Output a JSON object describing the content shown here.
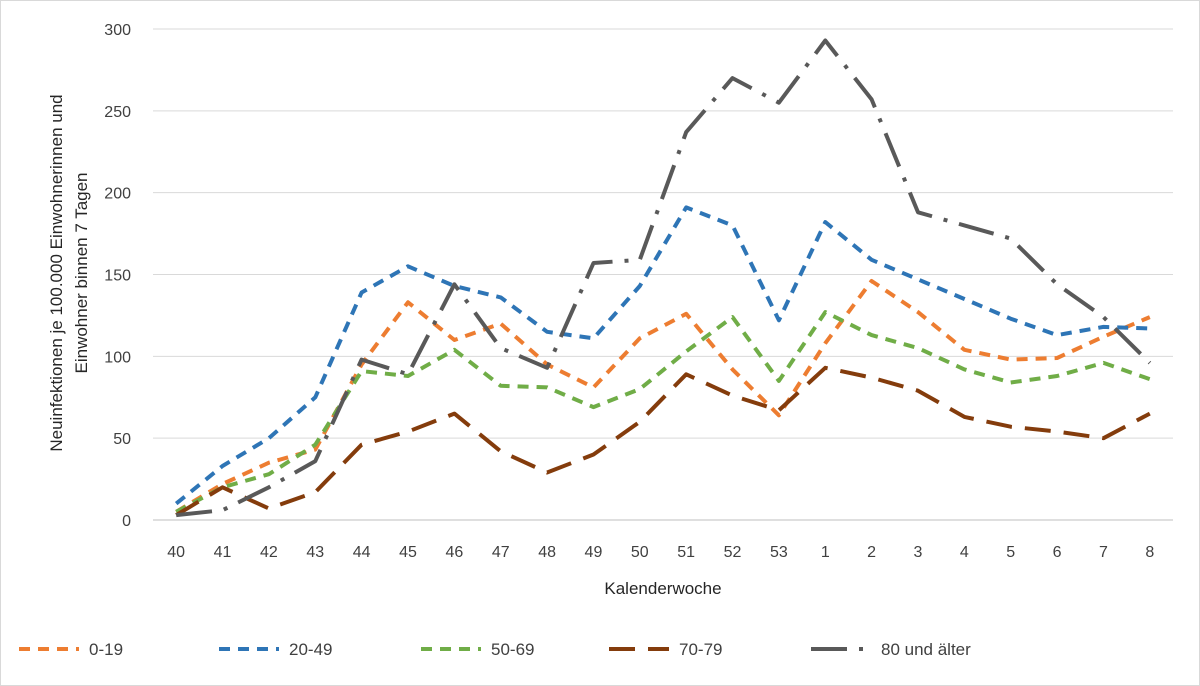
{
  "chart_data": {
    "type": "line",
    "title": "",
    "xlabel": "Kalenderwoche",
    "ylabel_lines": [
      "Neuinfektionen je 100.000 Einwohnerinnen und",
      "Einwohner binnen 7 Tagen"
    ],
    "ylim": [
      0,
      300
    ],
    "yticks": [
      0,
      50,
      100,
      150,
      200,
      250,
      300
    ],
    "grid": true,
    "legend_position": "bottom",
    "categories": [
      "40",
      "41",
      "42",
      "43",
      "44",
      "45",
      "46",
      "47",
      "48",
      "49",
      "50",
      "51",
      "52",
      "53",
      "1",
      "2",
      "3",
      "4",
      "5",
      "6",
      "7",
      "8"
    ],
    "series": [
      {
        "name": "0-19",
        "color": "#ED7D31",
        "dash": "dashed",
        "values": [
          5,
          22,
          35,
          43,
          95,
          133,
          110,
          120,
          95,
          81,
          111,
          126,
          92,
          64,
          108,
          146,
          127,
          104,
          98,
          99,
          112,
          124
        ]
      },
      {
        "name": "20-49",
        "color": "#2E75B6",
        "dash": "dashed",
        "values": [
          10,
          33,
          50,
          75,
          139,
          155,
          143,
          136,
          115,
          111,
          143,
          191,
          180,
          122,
          182,
          159,
          147,
          135,
          123,
          113,
          118,
          117
        ]
      },
      {
        "name": "50-69",
        "color": "#70AD47",
        "dash": "dashed",
        "values": [
          5,
          20,
          28,
          46,
          91,
          88,
          104,
          82,
          81,
          69,
          80,
          103,
          124,
          85,
          127,
          113,
          105,
          92,
          84,
          88,
          96,
          86
        ]
      },
      {
        "name": "70-79",
        "color": "#843C0C",
        "dash": "longdash",
        "values": [
          3,
          20,
          7,
          17,
          46,
          54,
          65,
          42,
          29,
          40,
          60,
          89,
          76,
          67,
          93,
          87,
          79,
          63,
          57,
          54,
          50,
          65
        ]
      },
      {
        "name": "80 und älter",
        "color": "#595959",
        "dash": "dashdot",
        "values": [
          3,
          6,
          20,
          36,
          98,
          89,
          144,
          105,
          93,
          157,
          159,
          237,
          270,
          255,
          293,
          257,
          188,
          180,
          172,
          144,
          124,
          96
        ]
      }
    ]
  }
}
